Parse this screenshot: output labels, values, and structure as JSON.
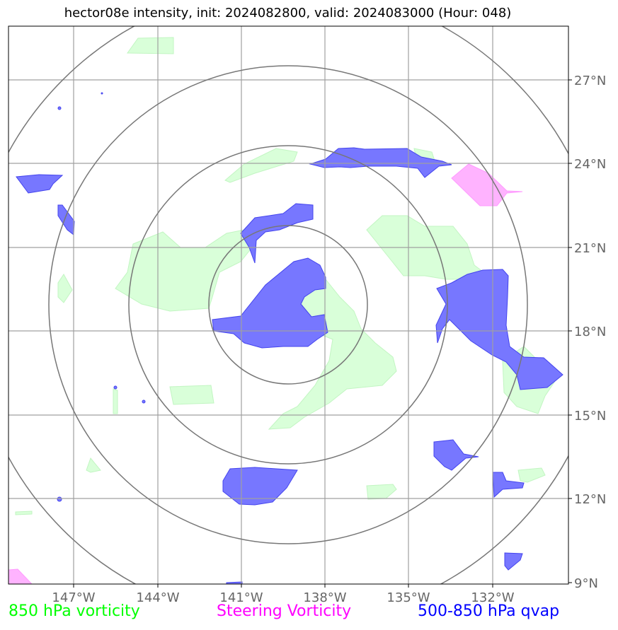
{
  "title": "hector08e intensity, init: 2024082800, valid: 2024083000 (Hour: 048)",
  "lon_ticks": [
    "147°W",
    "144°W",
    "141°W",
    "138°W",
    "135°W",
    "132°W"
  ],
  "lat_ticks": [
    "27°N",
    "24°N",
    "21°N",
    "18°N",
    "15°N",
    "12°N",
    "9°N"
  ],
  "legend": {
    "green": "850 hPa vorticity",
    "magenta": "Steering Vorticity",
    "blue": "500-850 hPa qvap"
  },
  "colors": {
    "green_fill": "#ccffcc",
    "magenta_fill": "#ffaaff",
    "blue_fill": "#5555ff",
    "grid": "#999999",
    "rings": "#777777"
  }
}
